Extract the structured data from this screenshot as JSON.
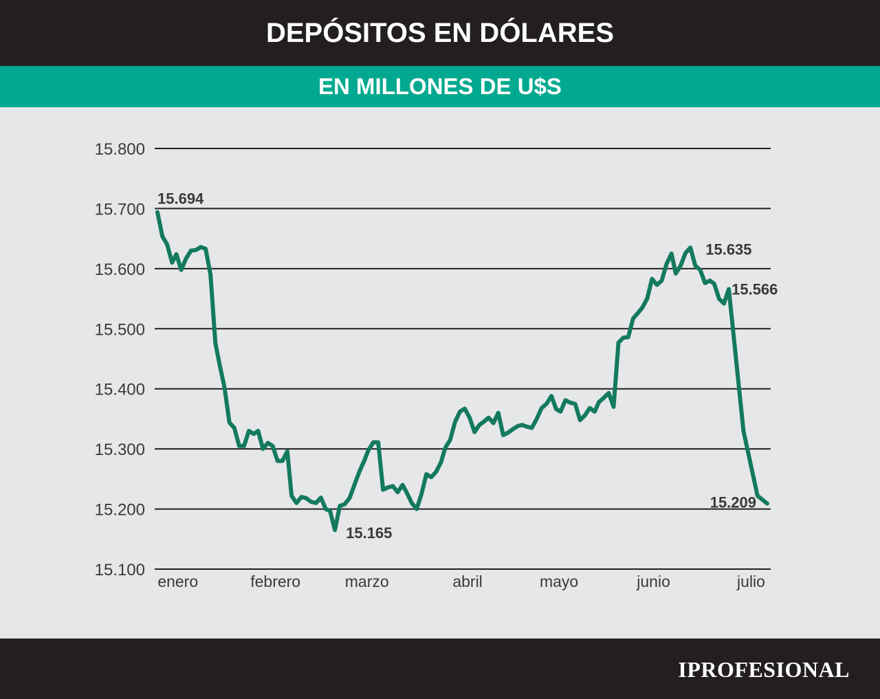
{
  "header": {
    "title": "DEPÓSITOS EN DÓLARES"
  },
  "subheader": {
    "title": "EN MILLONES DE U$S"
  },
  "footer": {
    "brand": "IPROFESIONAL"
  },
  "colors": {
    "header_bg": "#231f20",
    "accent": "#00a98f",
    "line": "#137a5f",
    "background": "#e6e7e8",
    "gridline": "#231f20"
  },
  "chart_data": {
    "type": "line",
    "title": "DEPÓSITOS EN DÓLARES",
    "subtitle": "EN MILLONES DE U$S",
    "ylim": [
      15100,
      15800
    ],
    "y_ticks": [
      15800,
      15700,
      15600,
      15500,
      15400,
      15300,
      15200,
      15100
    ],
    "y_tick_labels": [
      "15.800",
      "15.700",
      "15.600",
      "15.500",
      "15.400",
      "15.300",
      "15.200",
      "15.100"
    ],
    "x_ticks": [
      0.02,
      0.18,
      0.33,
      0.495,
      0.645,
      0.8,
      0.96
    ],
    "x_tick_labels": [
      "enero",
      "febrero",
      "marzo",
      "abril",
      "mayo",
      "junio",
      "julio"
    ],
    "grid": true,
    "series": [
      {
        "points": [
          [
            0.0,
            15694
          ],
          [
            0.008,
            15654
          ],
          [
            0.016,
            15640
          ],
          [
            0.024,
            15610
          ],
          [
            0.031,
            15624
          ],
          [
            0.039,
            15598
          ],
          [
            0.047,
            15617
          ],
          [
            0.055,
            15630
          ],
          [
            0.063,
            15631
          ],
          [
            0.071,
            15636
          ],
          [
            0.079,
            15633
          ],
          [
            0.087,
            15590
          ],
          [
            0.095,
            15476
          ],
          [
            0.102,
            15440
          ],
          [
            0.11,
            15402
          ],
          [
            0.118,
            15344
          ],
          [
            0.126,
            15335
          ],
          [
            0.134,
            15305
          ],
          [
            0.142,
            15305
          ],
          [
            0.15,
            15330
          ],
          [
            0.158,
            15325
          ],
          [
            0.165,
            15330
          ],
          [
            0.173,
            15300
          ],
          [
            0.181,
            15310
          ],
          [
            0.189,
            15305
          ],
          [
            0.197,
            15280
          ],
          [
            0.205,
            15280
          ],
          [
            0.213,
            15296
          ],
          [
            0.22,
            15222
          ],
          [
            0.228,
            15210
          ],
          [
            0.236,
            15220
          ],
          [
            0.244,
            15218
          ],
          [
            0.252,
            15212
          ],
          [
            0.26,
            15210
          ],
          [
            0.268,
            15219
          ],
          [
            0.276,
            15200
          ],
          [
            0.283,
            15197
          ],
          [
            0.291,
            15165
          ],
          [
            0.299,
            15205
          ],
          [
            0.307,
            15208
          ],
          [
            0.315,
            15218
          ],
          [
            0.323,
            15240
          ],
          [
            0.331,
            15262
          ],
          [
            0.339,
            15280
          ],
          [
            0.346,
            15298
          ],
          [
            0.354,
            15311
          ],
          [
            0.362,
            15311
          ],
          [
            0.37,
            15232
          ],
          [
            0.378,
            15236
          ],
          [
            0.386,
            15238
          ],
          [
            0.394,
            15228
          ],
          [
            0.402,
            15240
          ],
          [
            0.409,
            15227
          ],
          [
            0.417,
            15210
          ],
          [
            0.425,
            15200
          ],
          [
            0.433,
            15225
          ],
          [
            0.441,
            15258
          ],
          [
            0.449,
            15253
          ],
          [
            0.457,
            15262
          ],
          [
            0.465,
            15278
          ],
          [
            0.472,
            15302
          ],
          [
            0.48,
            15315
          ],
          [
            0.488,
            15345
          ],
          [
            0.496,
            15362
          ],
          [
            0.504,
            15367
          ],
          [
            0.512,
            15352
          ],
          [
            0.52,
            15328
          ],
          [
            0.528,
            15340
          ],
          [
            0.535,
            15345
          ],
          [
            0.543,
            15352
          ],
          [
            0.551,
            15343
          ],
          [
            0.559,
            15360
          ],
          [
            0.567,
            15323
          ],
          [
            0.575,
            15327
          ],
          [
            0.583,
            15333
          ],
          [
            0.591,
            15338
          ],
          [
            0.598,
            15340
          ],
          [
            0.606,
            15337
          ],
          [
            0.614,
            15335
          ],
          [
            0.622,
            15350
          ],
          [
            0.63,
            15368
          ],
          [
            0.638,
            15375
          ],
          [
            0.646,
            15388
          ],
          [
            0.654,
            15366
          ],
          [
            0.661,
            15362
          ],
          [
            0.669,
            15381
          ],
          [
            0.677,
            15377
          ],
          [
            0.685,
            15375
          ],
          [
            0.693,
            15348
          ],
          [
            0.701,
            15356
          ],
          [
            0.709,
            15368
          ],
          [
            0.717,
            15362
          ],
          [
            0.724,
            15378
          ],
          [
            0.732,
            15385
          ],
          [
            0.74,
            15393
          ],
          [
            0.748,
            15370
          ],
          [
            0.756,
            15477
          ],
          [
            0.764,
            15485
          ],
          [
            0.772,
            15486
          ],
          [
            0.78,
            15517
          ],
          [
            0.787,
            15525
          ],
          [
            0.795,
            15535
          ],
          [
            0.803,
            15550
          ],
          [
            0.811,
            15583
          ],
          [
            0.819,
            15573
          ],
          [
            0.827,
            15580
          ],
          [
            0.835,
            15608
          ],
          [
            0.843,
            15625
          ],
          [
            0.85,
            15592
          ],
          [
            0.858,
            15605
          ],
          [
            0.866,
            15626
          ],
          [
            0.874,
            15635
          ],
          [
            0.882,
            15605
          ],
          [
            0.89,
            15598
          ],
          [
            0.898,
            15576
          ],
          [
            0.906,
            15580
          ],
          [
            0.913,
            15575
          ],
          [
            0.921,
            15550
          ],
          [
            0.929,
            15542
          ],
          [
            0.937,
            15566
          ],
          [
            0.961,
            15330
          ],
          [
            0.984,
            15222
          ],
          [
            1.0,
            15209
          ]
        ]
      }
    ],
    "annotations": [
      {
        "text": "15.694",
        "x": 0.0,
        "y": 15694
      },
      {
        "text": "15.165",
        "x": 0.291,
        "y": 15165
      },
      {
        "text": "15.635",
        "x": 0.874,
        "y": 15635
      },
      {
        "text": "15.566",
        "x": 0.937,
        "y": 15566
      },
      {
        "text": "15.209",
        "x": 1.0,
        "y": 15209
      }
    ]
  }
}
